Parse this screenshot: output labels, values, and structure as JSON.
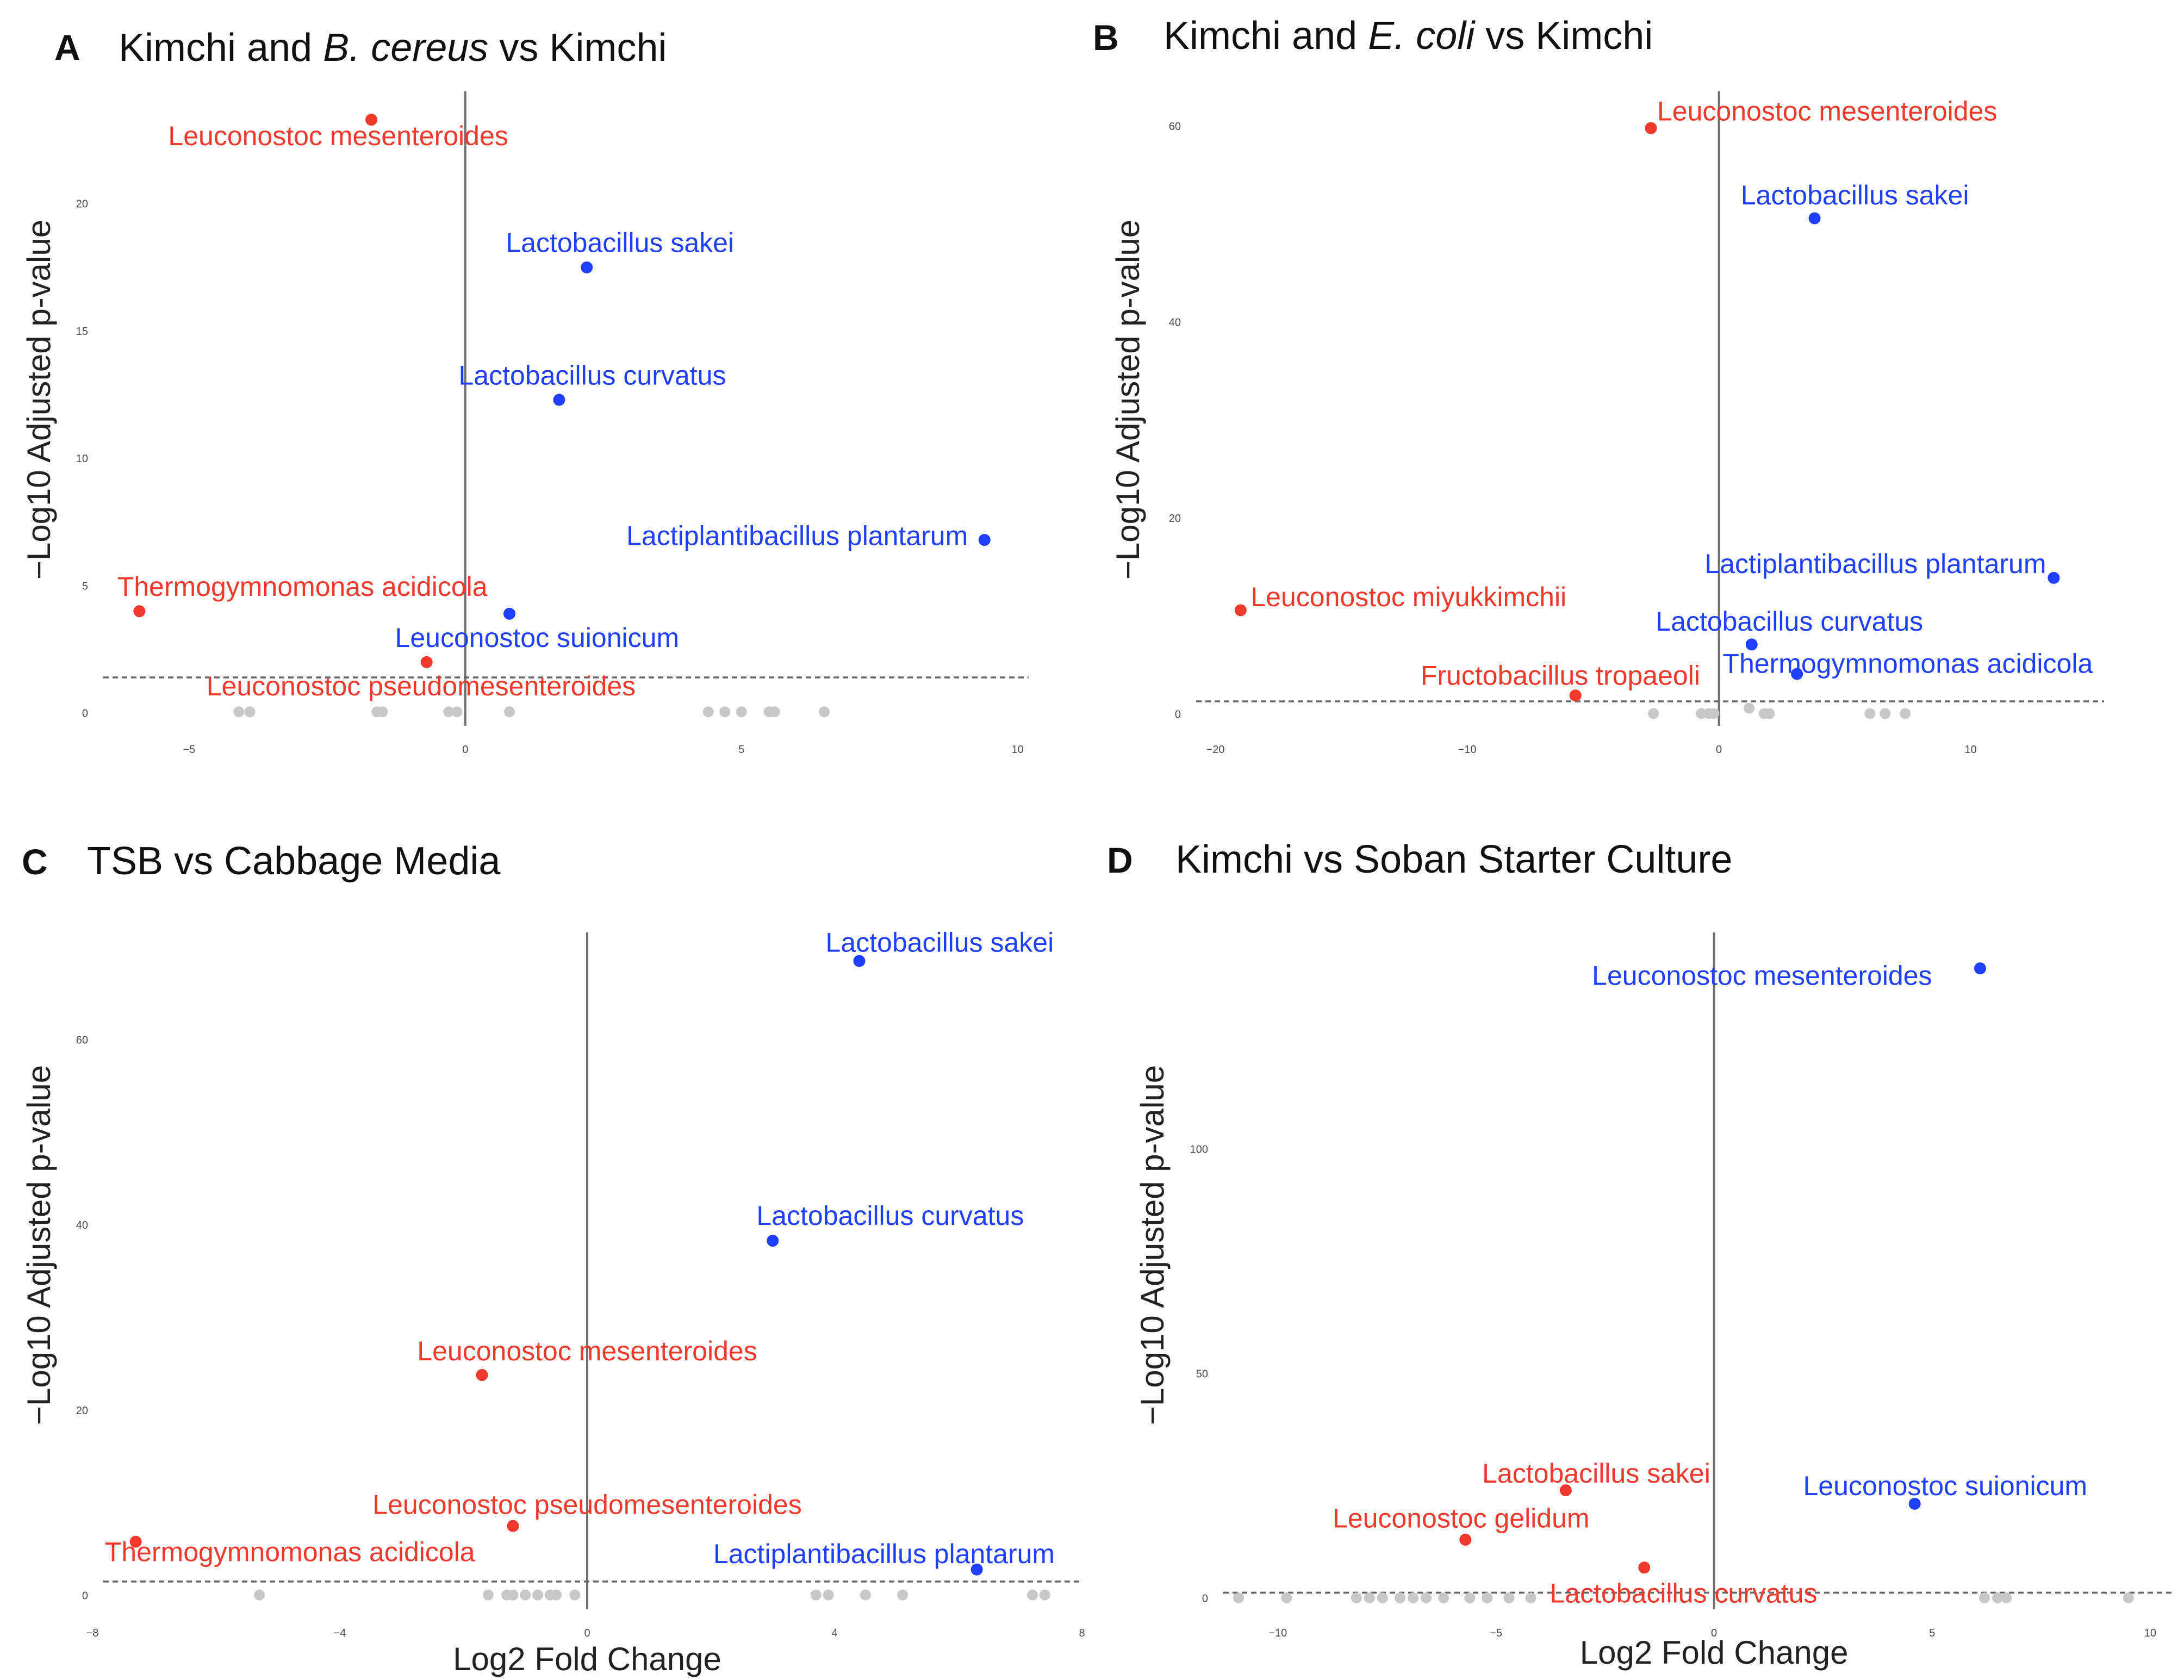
{
  "figure": {
    "colors": {
      "up": "#1f3fff",
      "down": "#f0392b",
      "ns": "#c8c8c8",
      "axis": "#6f6f6f",
      "threshold": "#666666"
    }
  },
  "chart_data": [
    {
      "panel": "A",
      "type": "scatter",
      "title": {
        "prefix": "Kimchi and ",
        "italic": "B. cereus",
        "suffix": " vs Kimchi"
      },
      "xlabel": "",
      "ylabel": "−Log10 Adjusted p-value",
      "xlim": [
        -6.75,
        10.2
      ],
      "ylim": [
        -0.5,
        24.2
      ],
      "xticks": [
        -5,
        0,
        5,
        10
      ],
      "yticks": [
        0,
        5,
        10,
        15,
        20
      ],
      "threshold": 1.4,
      "points": [
        {
          "label": "Leuconostoc mesenteroides",
          "x": -1.7,
          "y": 23.3,
          "group": "down",
          "lx": -2.3,
          "ly": 22.3,
          "anchor": "middle"
        },
        {
          "label": "Lactobacillus sakei",
          "x": 2.2,
          "y": 17.5,
          "group": "up",
          "lx": 2.8,
          "ly": 18.1,
          "anchor": "middle"
        },
        {
          "label": "Lactobacillus curvatus",
          "x": 1.7,
          "y": 12.3,
          "group": "up",
          "lx": 2.3,
          "ly": 12.9,
          "anchor": "middle"
        },
        {
          "label": "Lactiplantibacillus plantarum",
          "x": 9.4,
          "y": 6.8,
          "group": "up",
          "lx": 9.1,
          "ly": 6.6,
          "anchor": "end"
        },
        {
          "label": "Thermogymnomonas acidicola",
          "x": -5.9,
          "y": 4.0,
          "group": "down",
          "lx": -6.3,
          "ly": 4.6,
          "anchor": "start"
        },
        {
          "label": "Leuconostoc suionicum",
          "x": 0.8,
          "y": 3.9,
          "group": "up",
          "lx": 1.3,
          "ly": 2.6,
          "anchor": "middle"
        },
        {
          "label": "Leuconostoc pseudomesenteroides",
          "x": -0.7,
          "y": 2.0,
          "group": "down",
          "lx": -0.8,
          "ly": 0.7,
          "anchor": "middle"
        }
      ],
      "ns_points": [
        [
          -4.1,
          0.05
        ],
        [
          -3.9,
          0.05
        ],
        [
          -1.6,
          0.05
        ],
        [
          -1.5,
          0.05
        ],
        [
          -0.3,
          0.05
        ],
        [
          -0.15,
          0.05
        ],
        [
          0.8,
          0.05
        ],
        [
          4.4,
          0.05
        ],
        [
          4.7,
          0.05
        ],
        [
          5.0,
          0.05
        ],
        [
          5.5,
          0.05
        ],
        [
          5.6,
          0.05
        ],
        [
          6.5,
          0.05
        ]
      ]
    },
    {
      "panel": "B",
      "type": "scatter",
      "title": {
        "prefix": "Kimchi and ",
        "italic": "E. coli",
        "suffix": " vs Kimchi"
      },
      "xlabel": "",
      "ylabel": "−Log10 Adjusted p-value",
      "xlim": [
        -21.2,
        15.3
      ],
      "ylim": [
        -1.2,
        63.0
      ],
      "xticks": [
        -20,
        -10,
        0,
        10
      ],
      "yticks": [
        0,
        20,
        40,
        60
      ],
      "threshold": 1.3,
      "points": [
        {
          "label": "Leuconostoc mesenteroides",
          "x": -2.7,
          "y": 59.8,
          "group": "down",
          "lx": 4.3,
          "ly": 60.6,
          "anchor": "middle"
        },
        {
          "label": "Lactobacillus sakei",
          "x": 3.8,
          "y": 50.6,
          "group": "up",
          "lx": 5.4,
          "ly": 52.0,
          "anchor": "middle"
        },
        {
          "label": "Lactiplantibacillus plantarum",
          "x": 13.3,
          "y": 13.9,
          "group": "up",
          "lx": 13.0,
          "ly": 14.4,
          "anchor": "end"
        },
        {
          "label": "Leuconostoc miyukkimchii",
          "x": -19.0,
          "y": 10.6,
          "group": "down",
          "lx": -18.6,
          "ly": 11.0,
          "anchor": "start"
        },
        {
          "label": "Lactobacillus curvatus",
          "x": 1.3,
          "y": 7.1,
          "group": "up",
          "lx": 2.8,
          "ly": 8.5,
          "anchor": "middle"
        },
        {
          "label": "Thermogymnomonas acidicola",
          "x": 3.1,
          "y": 4.1,
          "group": "up",
          "lx": 7.5,
          "ly": 4.2,
          "anchor": "middle"
        },
        {
          "label": "Fructobacillus tropaeoli",
          "x": -5.7,
          "y": 1.9,
          "group": "down",
          "lx": -6.3,
          "ly": 3.0,
          "anchor": "middle"
        }
      ],
      "ns_points": [
        [
          -2.6,
          0.05
        ],
        [
          -0.7,
          0.05
        ],
        [
          -0.4,
          0.05
        ],
        [
          -0.2,
          0.05
        ],
        [
          1.2,
          0.6
        ],
        [
          1.8,
          0.05
        ],
        [
          2.0,
          0.05
        ],
        [
          6.0,
          0.05
        ],
        [
          6.6,
          0.05
        ],
        [
          7.4,
          0.05
        ]
      ]
    },
    {
      "panel": "C",
      "type": "scatter",
      "title": {
        "prefix": "TSB vs Cabbage Media",
        "italic": "",
        "suffix": ""
      },
      "xlabel": "Log2 Fold Change",
      "ylabel": "−Log10 Adjusted p-value",
      "xlim": [
        -8.0,
        8.0
      ],
      "ylim": [
        -1.5,
        71.0
      ],
      "xticks": [
        -8,
        -4,
        0,
        4,
        8
      ],
      "yticks": [
        0,
        20,
        40,
        60
      ],
      "threshold": 1.5,
      "points": [
        {
          "label": "Lactobacillus sakei",
          "x": 4.4,
          "y": 68.5,
          "group": "up",
          "lx": 5.7,
          "ly": 69.5,
          "anchor": "middle"
        },
        {
          "label": "Lactobacillus curvatus",
          "x": 3.0,
          "y": 38.3,
          "group": "up",
          "lx": 4.9,
          "ly": 40.0,
          "anchor": "middle"
        },
        {
          "label": "Leuconostoc mesenteroides",
          "x": -1.7,
          "y": 23.8,
          "group": "down",
          "lx": 0.0,
          "ly": 25.4,
          "anchor": "middle"
        },
        {
          "label": "Leuconostoc pseudomesenteroides",
          "x": -1.2,
          "y": 7.5,
          "group": "down",
          "lx": 0.0,
          "ly": 8.8,
          "anchor": "middle"
        },
        {
          "label": "Thermogymnomonas acidicola",
          "x": -7.3,
          "y": 5.8,
          "group": "down",
          "lx": -7.8,
          "ly": 3.7,
          "anchor": "start"
        },
        {
          "label": "Lactiplantibacillus plantarum",
          "x": 6.3,
          "y": 2.8,
          "group": "up",
          "lx": 4.8,
          "ly": 3.5,
          "anchor": "middle"
        }
      ],
      "ns_points": [
        [
          -5.3,
          0.05
        ],
        [
          -1.6,
          0.05
        ],
        [
          -1.3,
          0.05
        ],
        [
          -1.2,
          0.05
        ],
        [
          -1.0,
          0.05
        ],
        [
          -0.8,
          0.05
        ],
        [
          -0.6,
          0.05
        ],
        [
          -0.5,
          0.05
        ],
        [
          -0.2,
          0.05
        ],
        [
          3.7,
          0.05
        ],
        [
          3.9,
          0.05
        ],
        [
          4.5,
          0.05
        ],
        [
          5.1,
          0.05
        ],
        [
          7.2,
          0.05
        ],
        [
          7.4,
          0.05
        ]
      ]
    },
    {
      "panel": "D",
      "type": "scatter",
      "title": {
        "prefix": "Kimchi vs Soban Starter Culture",
        "italic": "",
        "suffix": ""
      },
      "xlabel": "Log2 Fold Change",
      "ylabel": "−Log10 Adjusted p-value",
      "xlim": [
        -11.5,
        10.5
      ],
      "ylim": [
        -2.5,
        147.0
      ],
      "xticks": [
        -10,
        -5,
        0,
        5,
        10
      ],
      "yticks": [
        0,
        50,
        100
      ],
      "threshold": 1.2,
      "points": [
        {
          "label": "Leuconostoc mesenteroides",
          "x": 6.1,
          "y": 140.2,
          "group": "up",
          "lx": 1.1,
          "ly": 136.5,
          "anchor": "middle"
        },
        {
          "label": "Lactobacillus sakei",
          "x": -3.4,
          "y": 24.0,
          "group": "down",
          "lx": -2.7,
          "ly": 25.7,
          "anchor": "middle"
        },
        {
          "label": "Leuconostoc suionicum",
          "x": 4.6,
          "y": 21.0,
          "group": "up",
          "lx": 5.3,
          "ly": 22.9,
          "anchor": "middle"
        },
        {
          "label": "Leuconostoc gelidum",
          "x": -5.7,
          "y": 13.0,
          "group": "down",
          "lx": -5.8,
          "ly": 15.7,
          "anchor": "middle"
        },
        {
          "label": "Lactobacillus curvatus",
          "x": -1.6,
          "y": 6.8,
          "group": "down",
          "lx": -0.7,
          "ly": -1.0,
          "anchor": "middle"
        }
      ],
      "ns_points": [
        [
          -10.9,
          0.05
        ],
        [
          -9.8,
          0.05
        ],
        [
          -8.2,
          0.05
        ],
        [
          -7.9,
          0.05
        ],
        [
          -7.6,
          0.05
        ],
        [
          -7.2,
          0.05
        ],
        [
          -6.9,
          0.05
        ],
        [
          -6.6,
          0.05
        ],
        [
          -6.2,
          0.05
        ],
        [
          -5.6,
          0.05
        ],
        [
          -5.2,
          0.05
        ],
        [
          -4.7,
          0.05
        ],
        [
          -4.2,
          0.05
        ],
        [
          6.2,
          0.05
        ],
        [
          6.5,
          0.05
        ],
        [
          6.7,
          0.05
        ],
        [
          9.5,
          0.05
        ]
      ]
    }
  ]
}
